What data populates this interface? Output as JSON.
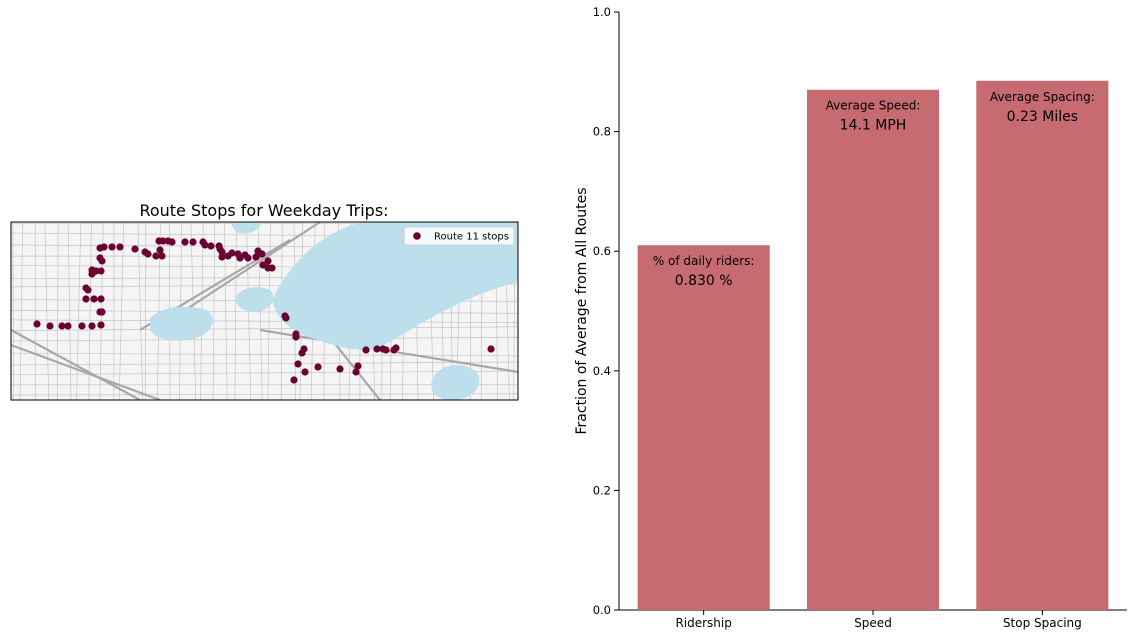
{
  "map_panel": {
    "title": "Route Stops for Weekday Trips:",
    "legend_label": "Route 11 stops",
    "marker_color": "#6b0032",
    "water_color": "#bcdfeb",
    "street_color": "#c4c4c4"
  },
  "chart_data": {
    "type": "bar",
    "categories": [
      "Ridership",
      "Speed",
      "Stop Spacing"
    ],
    "values": [
      0.61,
      0.87,
      0.885
    ],
    "bar_color": "#c66b70",
    "title": "",
    "xlabel": "",
    "ylabel": "Fraction of Average from All Routes",
    "ylim": [
      0,
      1
    ],
    "yticks": [
      "0.0",
      "0.2",
      "0.4",
      "0.6",
      "0.8",
      "1.0"
    ],
    "annotations": [
      {
        "label": "% of daily riders:",
        "value": "0.830 %"
      },
      {
        "label": "Average Speed:",
        "value": "14.1 MPH"
      },
      {
        "label": "Average Spacing:",
        "value": "0.23 Miles"
      }
    ]
  }
}
